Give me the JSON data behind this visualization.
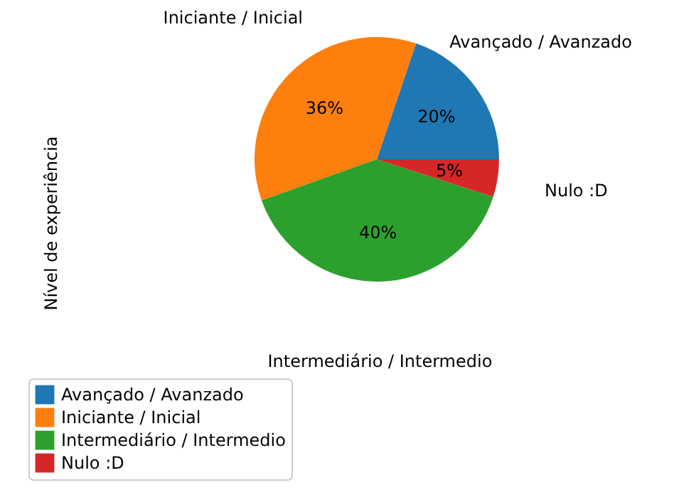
{
  "chart_data": {
    "type": "pie",
    "ylabel": "Nível de experiência",
    "categories": [
      "Avançado / Avanzado",
      "Iniciante / Inicial",
      "Intermediário / Intermedio",
      "Nulo :D"
    ],
    "values": [
      20,
      36,
      40,
      5
    ],
    "value_labels": [
      "20%",
      "36%",
      "40%",
      "5%"
    ],
    "colors": [
      "#1f77b4",
      "#ff7f0e",
      "#2ca02c",
      "#d62728"
    ],
    "legend": "bottom left"
  }
}
